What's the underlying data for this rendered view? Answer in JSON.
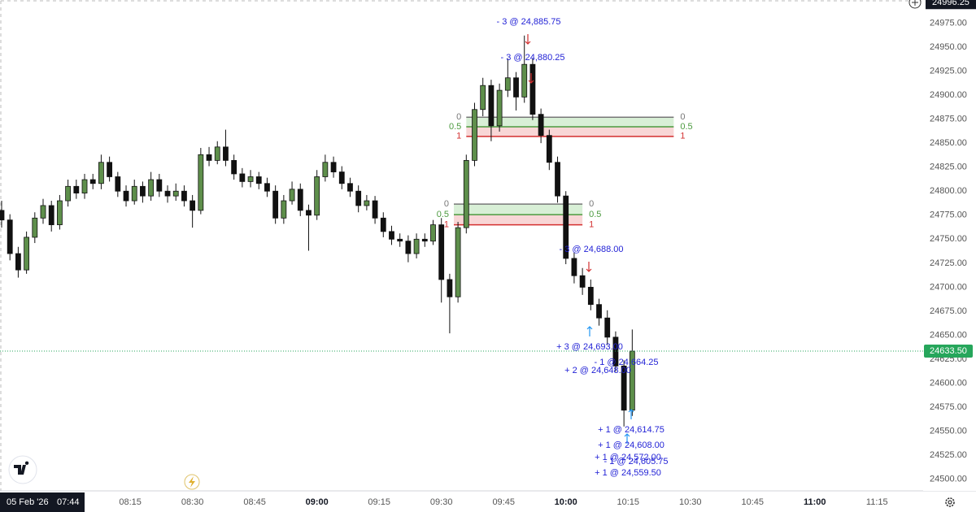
{
  "chart_data": {
    "type": "candlestick",
    "x": [
      "07:44",
      "07:46",
      "07:48",
      "07:50",
      "07:52",
      "07:54",
      "07:56",
      "07:58",
      "08:00",
      "08:02",
      "08:04",
      "08:06",
      "08:08",
      "08:10",
      "08:12",
      "08:14",
      "08:16",
      "08:18",
      "08:20",
      "08:22",
      "08:24",
      "08:26",
      "08:28",
      "08:30",
      "08:32",
      "08:34",
      "08:36",
      "08:38",
      "08:40",
      "08:42",
      "08:44",
      "08:46",
      "08:48",
      "08:50",
      "08:52",
      "08:54",
      "08:56",
      "08:58",
      "09:00",
      "09:02",
      "09:04",
      "09:06",
      "09:08",
      "09:10",
      "09:12",
      "09:14",
      "09:16",
      "09:18",
      "09:20",
      "09:22",
      "09:24",
      "09:26",
      "09:28",
      "09:30",
      "09:32",
      "09:34",
      "09:36",
      "09:38",
      "09:40",
      "09:42",
      "09:44",
      "09:46",
      "09:48",
      "09:50",
      "09:52",
      "09:54",
      "09:56",
      "09:58",
      "10:00",
      "10:02",
      "10:04",
      "10:06",
      "10:08",
      "10:10",
      "10:12",
      "10:14",
      "10:16"
    ],
    "open": [
      24780,
      24770,
      24735,
      24718,
      24752,
      24772,
      24785,
      24765,
      24790,
      24805,
      24798,
      24812,
      24808,
      24830,
      24815,
      24800,
      24790,
      24805,
      24795,
      24812,
      24800,
      24795,
      24800,
      24790,
      24780,
      24838,
      24832,
      24846,
      24832,
      24818,
      24810,
      24815,
      24808,
      24800,
      24772,
      24790,
      24802,
      24780,
      24775,
      24815,
      24830,
      24820,
      24808,
      24800,
      24785,
      24790,
      24772,
      24758,
      24750,
      24748,
      24735,
      24750,
      24748,
      24765,
      24708,
      24690,
      24762,
      24832,
      24885,
      24910,
      24868,
      24905,
      24918,
      24898,
      24932,
      24880,
      24858,
      24830,
      24795,
      24730,
      24712,
      24700,
      24682,
      24668,
      24648,
      24618,
      24572
    ],
    "high": [
      24790,
      24776,
      24742,
      24758,
      24778,
      24792,
      24790,
      24796,
      24812,
      24812,
      24818,
      24818,
      24838,
      24836,
      24820,
      24806,
      24812,
      24810,
      24820,
      24818,
      24806,
      24808,
      24806,
      24796,
      24845,
      24846,
      24852,
      24864,
      24838,
      24824,
      24822,
      24820,
      24814,
      24806,
      24796,
      24810,
      24808,
      24786,
      24822,
      24838,
      24836,
      24826,
      24814,
      24806,
      24796,
      24795,
      24778,
      24764,
      24756,
      24754,
      24756,
      24756,
      24770,
      24772,
      24714,
      24768,
      24838,
      24892,
      24918,
      24916,
      24912,
      24938,
      24924,
      24962,
      24938,
      24886,
      24864,
      24836,
      24800,
      24736,
      24720,
      24708,
      24688,
      24676,
      24654,
      24624,
      24656
    ],
    "low": [
      24762,
      24728,
      24710,
      24714,
      24746,
      24766,
      24758,
      24760,
      24784,
      24792,
      24792,
      24802,
      24802,
      24810,
      24794,
      24784,
      24786,
      24788,
      24790,
      24794,
      24788,
      24790,
      24784,
      24762,
      24776,
      24826,
      24828,
      24826,
      24812,
      24804,
      24804,
      24802,
      24794,
      24766,
      24766,
      24786,
      24774,
      24738,
      24770,
      24810,
      24814,
      24802,
      24794,
      24778,
      24780,
      24766,
      24752,
      24744,
      24742,
      24726,
      24730,
      24742,
      24744,
      24684,
      24652,
      24684,
      24756,
      24826,
      24878,
      24852,
      24862,
      24898,
      24884,
      24892,
      24874,
      24850,
      24822,
      24788,
      24724,
      24704,
      24692,
      24676,
      24660,
      24640,
      24612,
      24555,
      24566
    ],
    "close": [
      24770,
      24735,
      24718,
      24752,
      24772,
      24785,
      24765,
      24790,
      24805,
      24798,
      24812,
      24808,
      24830,
      24815,
      24800,
      24790,
      24805,
      24795,
      24812,
      24800,
      24795,
      24800,
      24790,
      24780,
      24838,
      24832,
      24846,
      24832,
      24818,
      24810,
      24815,
      24808,
      24800,
      24772,
      24790,
      24802,
      24780,
      24775,
      24815,
      24830,
      24820,
      24808,
      24800,
      24785,
      24790,
      24772,
      24758,
      24750,
      24748,
      24735,
      24750,
      24748,
      24765,
      24708,
      24690,
      24762,
      24832,
      24885,
      24910,
      24868,
      24905,
      24918,
      24898,
      24932,
      24880,
      24858,
      24830,
      24795,
      24730,
      24712,
      24700,
      24682,
      24668,
      24648,
      24618,
      24572,
      24633.5
    ],
    "up_color": "#5e8f4b",
    "down_color": "#111111",
    "wick_color": "#111111",
    "ylim": [
      24488,
      24999
    ],
    "yticks": [
      {
        "value": 24500,
        "label": "24500.00"
      },
      {
        "value": 24525,
        "label": "24525.00"
      },
      {
        "value": 24550,
        "label": "24550.00"
      },
      {
        "value": 24575,
        "label": "24575.00"
      },
      {
        "value": 24600,
        "label": "24600.00"
      },
      {
        "value": 24625,
        "label": "24625.00"
      },
      {
        "value": 24650,
        "label": "24650.00"
      },
      {
        "value": 24675,
        "label": "24675.00"
      },
      {
        "value": 24700,
        "label": "24700.00"
      },
      {
        "value": 24725,
        "label": "24725.00"
      },
      {
        "value": 24750,
        "label": "24750.00"
      },
      {
        "value": 24775,
        "label": "24775.00"
      },
      {
        "value": 24800,
        "label": "24800.00"
      },
      {
        "value": 24825,
        "label": "24825.00"
      },
      {
        "value": 24850,
        "label": "24850.00"
      },
      {
        "value": 24875,
        "label": "24875.00"
      },
      {
        "value": 24900,
        "label": "24900.00"
      },
      {
        "value": 24925,
        "label": "24925.00"
      },
      {
        "value": 24950,
        "label": "24950.00"
      },
      {
        "value": 24975,
        "label": "24975.00"
      }
    ],
    "xlim": [
      "07:44",
      "11:22"
    ],
    "xticks": [
      "08:15",
      "08:30",
      "08:45",
      "09:00",
      "09:15",
      "09:30",
      "09:45",
      "10:00",
      "10:15",
      "10:30",
      "10:45",
      "11:00",
      "11:15"
    ],
    "last_price": {
      "value": 24633.5,
      "label": "24633.50",
      "color": "#26a65b"
    },
    "crosshair_price": {
      "value": 24996.25,
      "label": "24996.25"
    },
    "crosshair_date": "05 Feb '26",
    "crosshair_time": "07:44",
    "zones": [
      {
        "start": "09:36",
        "end": "10:26",
        "upper_fill": "#d8efd6",
        "lower_fill": "#f8d6d6",
        "levels": [
          {
            "label": "0",
            "price": 24877,
            "color": "#777777"
          },
          {
            "label": "0.5",
            "price": 24867,
            "color": "#4c9a3f"
          },
          {
            "label": "1",
            "price": 24857,
            "color": "#d32f2f"
          }
        ]
      },
      {
        "start": "09:33",
        "end": "10:04",
        "upper_fill": "#d8efd6",
        "lower_fill": "#f8d6d6",
        "levels": [
          {
            "label": "0",
            "price": 24786.5,
            "color": "#777777"
          },
          {
            "label": "0.5",
            "price": 24775.5,
            "color": "#4c9a3f"
          },
          {
            "label": "1",
            "price": 24765,
            "color": "#d32f2f"
          }
        ]
      }
    ],
    "trades": [
      {
        "label": "- 3 @ 24,885.75",
        "arrow_color": "#d32f2f"
      },
      {
        "label": "- 3 @ 24,880.25",
        "arrow_color": "#d32f2f"
      },
      {
        "label": "- 3 @ 24,688.00",
        "arrow_color": "#d32f2f"
      },
      {
        "label": "+ 3 @ 24,693.00",
        "arrow_color": "#2196f3"
      },
      {
        "label": "- 1 @ 24,664.25"
      },
      {
        "label": "+ 2 @ 24,648.00"
      },
      {
        "label": "+ 1 @ 24,614.75",
        "arrow_color": "#2196f3"
      },
      {
        "label": "+ 1 @ 24,608.00",
        "arrow_color": "#2196f3"
      },
      {
        "label": "+ 1 @ 24,572.00"
      },
      {
        "label": "- 1 @ 24,605.75"
      },
      {
        "label": "+ 1 @ 24,559.50"
      }
    ]
  }
}
